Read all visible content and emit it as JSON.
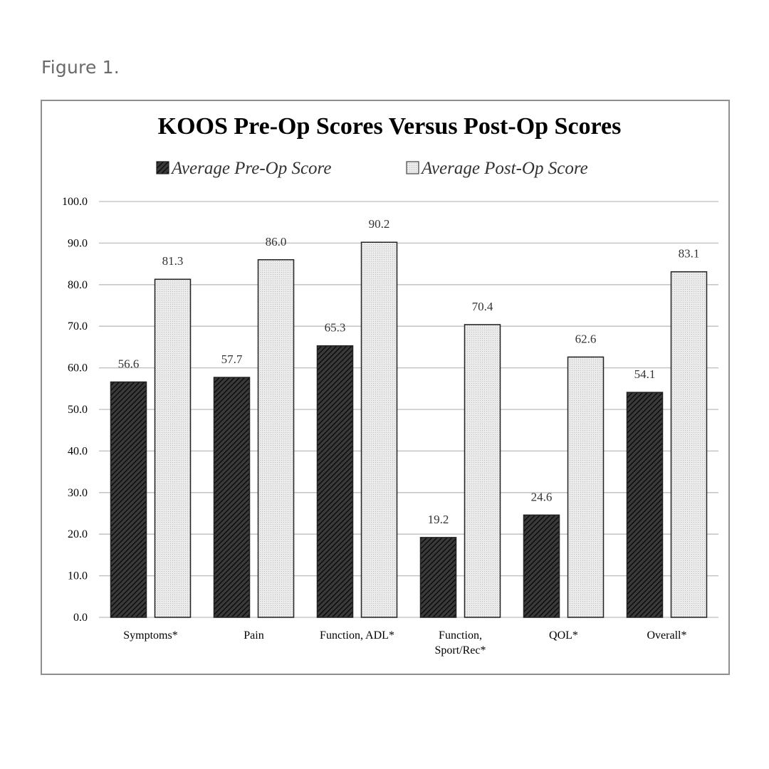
{
  "caption": "Figure 1.",
  "colors": {
    "pre": "#2a2a2a",
    "post": "#e4e4e4",
    "grid": "#bdbdbd",
    "frame": "#8f8f8f"
  },
  "chart_data": {
    "type": "bar",
    "title": "KOOS Pre-Op Scores Versus Post-Op Scores",
    "xlabel": "",
    "ylabel": "",
    "ylim": [
      0,
      100
    ],
    "yticks": [
      "0.0",
      "10.0",
      "20.0",
      "30.0",
      "40.0",
      "50.0",
      "60.0",
      "70.0",
      "80.0",
      "90.0",
      "100.0"
    ],
    "grid": true,
    "legend_position": "top",
    "categories": [
      [
        "Symptoms*"
      ],
      [
        "Pain"
      ],
      [
        "Function, ADL*"
      ],
      [
        "Function,",
        "Sport/Rec*"
      ],
      [
        "QOL*"
      ],
      [
        "Overall*"
      ]
    ],
    "series": [
      {
        "name": "Average Pre-Op Score",
        "pattern": "diagonal-hatch",
        "values": [
          56.6,
          57.7,
          65.3,
          19.2,
          24.6,
          54.1
        ],
        "labels": [
          "56.6",
          "57.7",
          "65.3",
          "19.2",
          "24.6",
          "54.1"
        ]
      },
      {
        "name": "Average Post-Op Score",
        "pattern": "light-dots",
        "values": [
          81.3,
          86.0,
          90.2,
          70.4,
          62.6,
          83.1
        ],
        "labels": [
          "81.3",
          "86.0",
          "90.2",
          "70.4",
          "62.6",
          "83.1"
        ]
      }
    ]
  }
}
